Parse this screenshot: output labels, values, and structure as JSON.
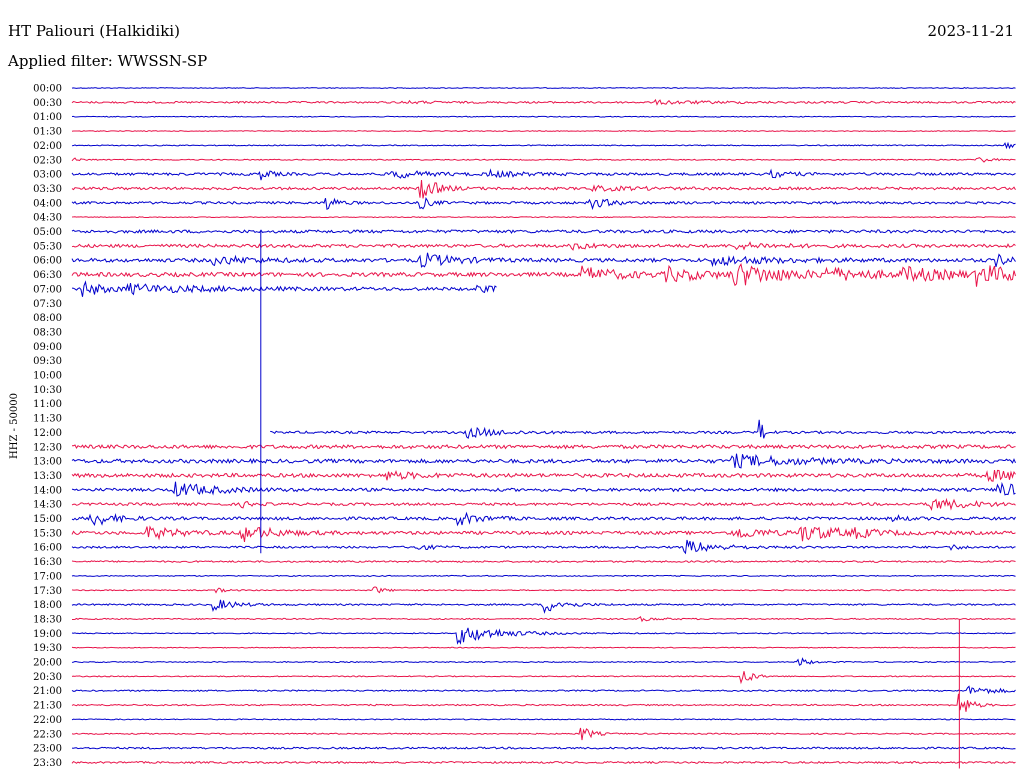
{
  "header": {
    "station": "HT Paliouri (Halkidiki)",
    "date": "2023-11-21",
    "filter_prefix": "Applied filter:",
    "filter_name": "WWSSN-SP"
  },
  "colors": {
    "even": "#0000cc",
    "odd": "#e8144a"
  },
  "chart_data": {
    "type": "line",
    "ylabel": "HHZ - 50000",
    "rows": [
      {
        "label": "00:00",
        "noise": 0.4,
        "data_end": 1,
        "events": []
      },
      {
        "label": "00:30",
        "noise": 0.9,
        "data_end": 1,
        "events": [
          {
            "t": 0.62,
            "a": 1.5,
            "d": 0.06
          },
          {
            "t": 0.35,
            "a": 1,
            "d": 0.03
          }
        ]
      },
      {
        "label": "01:00",
        "noise": 0.4,
        "data_end": 1,
        "events": []
      },
      {
        "label": "01:30",
        "noise": 0.4,
        "data_end": 1,
        "events": []
      },
      {
        "label": "02:00",
        "noise": 0.5,
        "data_end": 1,
        "events": [
          {
            "t": 0.99,
            "a": 3,
            "d": 0.01
          }
        ]
      },
      {
        "label": "02:30",
        "noise": 0.5,
        "data_end": 1,
        "events": [
          {
            "t": 0.0,
            "a": 2,
            "d": 0.01
          },
          {
            "t": 0.96,
            "a": 4,
            "d": 0.01
          }
        ]
      },
      {
        "label": "03:00",
        "noise": 1.3,
        "data_end": 1,
        "events": [
          {
            "t": 0.2,
            "a": 5,
            "d": 0.01
          },
          {
            "t": 0.34,
            "a": 4,
            "d": 0.03
          },
          {
            "t": 0.44,
            "a": 3,
            "d": 0.03
          },
          {
            "t": 0.74,
            "a": 3,
            "d": 0.02
          }
        ]
      },
      {
        "label": "03:30",
        "noise": 1.3,
        "data_end": 1,
        "events": [
          {
            "t": 0.37,
            "a": 12,
            "d": 0.015
          },
          {
            "t": 0.55,
            "a": 2,
            "d": 0.05
          }
        ]
      },
      {
        "label": "04:00",
        "noise": 1.2,
        "data_end": 1,
        "events": [
          {
            "t": 0.27,
            "a": 7,
            "d": 0.01
          },
          {
            "t": 0.37,
            "a": 6,
            "d": 0.01
          },
          {
            "t": 0.55,
            "a": 5,
            "d": 0.02
          }
        ]
      },
      {
        "label": "04:30",
        "noise": 0.4,
        "data_end": 1,
        "events": []
      },
      {
        "label": "05:00",
        "noise": 1.5,
        "data_end": 1,
        "events": []
      },
      {
        "label": "05:30",
        "noise": 1.6,
        "data_end": 1,
        "events": [
          {
            "t": 0.53,
            "a": 3,
            "d": 0.02
          },
          {
            "t": 0.7,
            "a": 3,
            "d": 0.04
          }
        ]
      },
      {
        "label": "06:00",
        "noise": 1.8,
        "data_end": 1,
        "events": [
          {
            "t": 0.15,
            "a": 4,
            "d": 0.04
          },
          {
            "t": 0.37,
            "a": 7,
            "d": 0.03
          },
          {
            "t": 0.68,
            "a": 4,
            "d": 0.06
          },
          {
            "t": 0.98,
            "a": 5,
            "d": 0.02
          }
        ]
      },
      {
        "label": "06:30",
        "noise": 2.0,
        "data_end": 1,
        "events": [
          {
            "t": 0.54,
            "a": 7,
            "d": 0.04
          },
          {
            "t": 0.63,
            "a": 6,
            "d": 0.04
          },
          {
            "t": 0.7,
            "a": 11,
            "d": 0.05
          },
          {
            "t": 0.8,
            "a": 5,
            "d": 0.05
          },
          {
            "t": 0.88,
            "a": 6,
            "d": 0.05
          },
          {
            "t": 0.96,
            "a": 9,
            "d": 0.04
          }
        ]
      },
      {
        "label": "07:00",
        "noise": 1.6,
        "data_end": 0.45,
        "events": [
          {
            "t": 0.01,
            "a": 8,
            "d": 0.02
          },
          {
            "t": 0.06,
            "a": 4,
            "d": 0.08
          },
          {
            "t": 0.43,
            "a": 3,
            "d": 0.02
          }
        ]
      },
      {
        "label": "07:30",
        "noise": 0,
        "data_end": 0,
        "events": []
      },
      {
        "label": "08:00",
        "noise": 0,
        "data_end": 0,
        "events": []
      },
      {
        "label": "08:30",
        "noise": 0,
        "data_end": 0,
        "events": []
      },
      {
        "label": "09:00",
        "noise": 0,
        "data_end": 0,
        "events": []
      },
      {
        "label": "09:30",
        "noise": 0,
        "data_end": 0,
        "events": []
      },
      {
        "label": "10:00",
        "noise": 0,
        "data_end": 0,
        "events": []
      },
      {
        "label": "10:30",
        "noise": 0,
        "data_end": 0,
        "events": []
      },
      {
        "label": "11:00",
        "noise": 0,
        "data_end": 0,
        "events": []
      },
      {
        "label": "11:30",
        "noise": 0,
        "data_end": 0,
        "events": []
      },
      {
        "label": "12:00",
        "noise": 1.2,
        "data_start": 0.21,
        "data_end": 1,
        "events": [
          {
            "t": 0.42,
            "a": 5,
            "d": 0.03
          },
          {
            "t": 0.73,
            "a": 12,
            "d": 0.004
          }
        ]
      },
      {
        "label": "12:30",
        "noise": 1.8,
        "data_end": 1,
        "events": []
      },
      {
        "label": "13:00",
        "noise": 1.9,
        "data_end": 1,
        "events": [
          {
            "t": 0.7,
            "a": 6,
            "d": 0.06
          }
        ]
      },
      {
        "label": "13:30",
        "noise": 1.9,
        "data_end": 1,
        "events": [
          {
            "t": 0.33,
            "a": 4,
            "d": 0.03
          },
          {
            "t": 0.97,
            "a": 5,
            "d": 0.04
          }
        ]
      },
      {
        "label": "14:00",
        "noise": 1.5,
        "data_end": 1,
        "events": [
          {
            "t": 0.11,
            "a": 7,
            "d": 0.04
          },
          {
            "t": 0.98,
            "a": 7,
            "d": 0.03
          }
        ]
      },
      {
        "label": "14:30",
        "noise": 1.3,
        "data_end": 1,
        "events": [
          {
            "t": 0.18,
            "a": 3,
            "d": 0.01
          },
          {
            "t": 0.91,
            "a": 6,
            "d": 0.04
          }
        ]
      },
      {
        "label": "15:00",
        "noise": 1.5,
        "data_end": 1,
        "events": [
          {
            "t": 0.02,
            "a": 8,
            "d": 0.02
          },
          {
            "t": 0.41,
            "a": 6,
            "d": 0.02
          },
          {
            "t": 0.87,
            "a": 3,
            "d": 0.01
          }
        ]
      },
      {
        "label": "15:30",
        "noise": 1.6,
        "data_end": 1,
        "events": [
          {
            "t": 0.08,
            "a": 6,
            "d": 0.03
          },
          {
            "t": 0.18,
            "a": 8,
            "d": 0.03
          },
          {
            "t": 0.7,
            "a": 6,
            "d": 0.03
          },
          {
            "t": 0.77,
            "a": 8,
            "d": 0.04
          },
          {
            "t": 0.83,
            "a": 3,
            "d": 0.02
          }
        ]
      },
      {
        "label": "16:00",
        "noise": 1.0,
        "data_end": 1,
        "events": [
          {
            "t": 0.36,
            "a": 3,
            "d": 0.02
          },
          {
            "t": 0.65,
            "a": 7,
            "d": 0.03
          },
          {
            "t": 0.93,
            "a": 3,
            "d": 0.01
          }
        ]
      },
      {
        "label": "16:30",
        "noise": 0.8,
        "data_end": 1,
        "events": []
      },
      {
        "label": "17:00",
        "noise": 0.5,
        "data_end": 1,
        "events": []
      },
      {
        "label": "17:30",
        "noise": 0.5,
        "data_end": 1,
        "events": [
          {
            "t": 0.15,
            "a": 3,
            "d": 0.01
          },
          {
            "t": 0.32,
            "a": 4,
            "d": 0.01
          }
        ]
      },
      {
        "label": "18:00",
        "noise": 0.8,
        "data_end": 1,
        "events": [
          {
            "t": 0.15,
            "a": 6,
            "d": 0.02
          },
          {
            "t": 0.5,
            "a": 8,
            "d": 0.02
          }
        ]
      },
      {
        "label": "18:30",
        "noise": 0.6,
        "data_end": 1,
        "events": [
          {
            "t": 0.6,
            "a": 2,
            "d": 0.02
          }
        ]
      },
      {
        "label": "19:00",
        "noise": 0.5,
        "data_end": 1,
        "events": [
          {
            "t": 0.41,
            "a": 10,
            "d": 0.04
          }
        ]
      },
      {
        "label": "19:30",
        "noise": 0.4,
        "data_end": 1,
        "events": []
      },
      {
        "label": "20:00",
        "noise": 0.5,
        "data_end": 1,
        "events": [
          {
            "t": 0.77,
            "a": 5,
            "d": 0.01
          }
        ]
      },
      {
        "label": "20:30",
        "noise": 0.5,
        "data_end": 1,
        "events": [
          {
            "t": 0.71,
            "a": 9,
            "d": 0.01
          }
        ]
      },
      {
        "label": "21:00",
        "noise": 0.7,
        "data_end": 1,
        "events": [
          {
            "t": 0.95,
            "a": 4,
            "d": 0.03
          }
        ]
      },
      {
        "label": "21:30",
        "noise": 0.7,
        "data_end": 1,
        "events": [
          {
            "t": 0.94,
            "a": 14,
            "d": 0.01
          }
        ]
      },
      {
        "label": "22:00",
        "noise": 0.5,
        "data_end": 1,
        "events": []
      },
      {
        "label": "22:30",
        "noise": 0.6,
        "data_end": 1,
        "events": [
          {
            "t": 0.54,
            "a": 8,
            "d": 0.01
          }
        ]
      },
      {
        "label": "23:00",
        "noise": 0.9,
        "data_end": 1,
        "events": []
      },
      {
        "label": "23:30",
        "noise": 0.9,
        "data_end": 1,
        "events": []
      }
    ],
    "spikes": [
      {
        "label": "spike-0500",
        "t": 0.2,
        "from_row": "05:00",
        "to_row": "16:00"
      },
      {
        "label": "spike-1830",
        "t": 0.94,
        "from_row": "18:30",
        "to_row": "23:30"
      }
    ]
  }
}
